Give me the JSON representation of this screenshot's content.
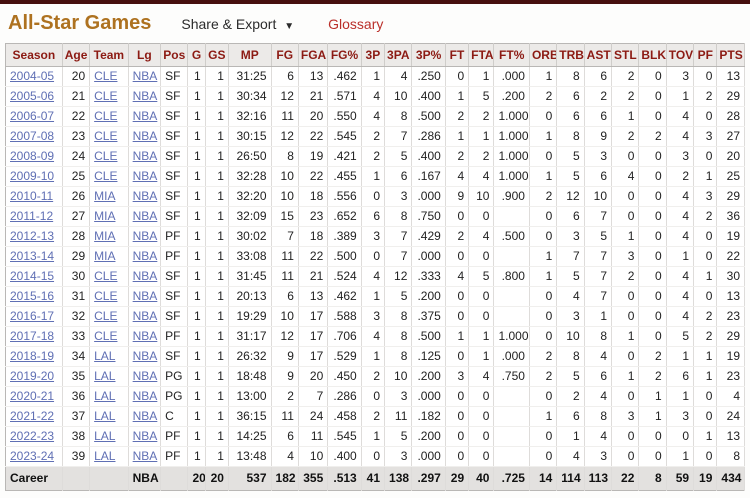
{
  "header": {
    "title": "All-Star Games",
    "share_export_label": "Share & Export",
    "share_export_caret": "▼",
    "glossary_label": "Glossary"
  },
  "colors": {
    "top_bar": "#46100f",
    "title": "#ae7220",
    "header_text": "#8c1a13",
    "glossary_link": "#ba2f2a",
    "cell_link": "#5f6fb4",
    "header_bg": "#eceae8",
    "career_bg": "#e3e1df"
  },
  "table": {
    "columns": [
      "Season",
      "Age",
      "Team",
      "Lg",
      "Pos",
      "G",
      "GS",
      "MP",
      "FG",
      "FGA",
      "FG%",
      "3P",
      "3PA",
      "3P%",
      "FT",
      "FTA",
      "FT%",
      "ORB",
      "TRB",
      "AST",
      "STL",
      "BLK",
      "TOV",
      "PF",
      "PTS"
    ],
    "rows": [
      [
        "2004-05",
        "20",
        "CLE",
        "NBA",
        "SF",
        "1",
        "1",
        "31:25",
        "6",
        "13",
        ".462",
        "1",
        "4",
        ".250",
        "0",
        "1",
        ".000",
        "1",
        "8",
        "6",
        "2",
        "0",
        "3",
        "0",
        "13"
      ],
      [
        "2005-06",
        "21",
        "CLE",
        "NBA",
        "SF",
        "1",
        "1",
        "30:34",
        "12",
        "21",
        ".571",
        "4",
        "10",
        ".400",
        "1",
        "5",
        ".200",
        "2",
        "6",
        "2",
        "2",
        "0",
        "1",
        "2",
        "29"
      ],
      [
        "2006-07",
        "22",
        "CLE",
        "NBA",
        "SF",
        "1",
        "1",
        "32:16",
        "11",
        "20",
        ".550",
        "4",
        "8",
        ".500",
        "2",
        "2",
        "1.000",
        "0",
        "6",
        "6",
        "1",
        "0",
        "4",
        "0",
        "28"
      ],
      [
        "2007-08",
        "23",
        "CLE",
        "NBA",
        "SF",
        "1",
        "1",
        "30:15",
        "12",
        "22",
        ".545",
        "2",
        "7",
        ".286",
        "1",
        "1",
        "1.000",
        "1",
        "8",
        "9",
        "2",
        "2",
        "4",
        "3",
        "27"
      ],
      [
        "2008-09",
        "24",
        "CLE",
        "NBA",
        "SF",
        "1",
        "1",
        "26:50",
        "8",
        "19",
        ".421",
        "2",
        "5",
        ".400",
        "2",
        "2",
        "1.000",
        "0",
        "5",
        "3",
        "0",
        "0",
        "3",
        "0",
        "20"
      ],
      [
        "2009-10",
        "25",
        "CLE",
        "NBA",
        "SF",
        "1",
        "1",
        "32:28",
        "10",
        "22",
        ".455",
        "1",
        "6",
        ".167",
        "4",
        "4",
        "1.000",
        "1",
        "5",
        "6",
        "4",
        "0",
        "2",
        "1",
        "25"
      ],
      [
        "2010-11",
        "26",
        "MIA",
        "NBA",
        "SF",
        "1",
        "1",
        "32:20",
        "10",
        "18",
        ".556",
        "0",
        "3",
        ".000",
        "9",
        "10",
        ".900",
        "2",
        "12",
        "10",
        "0",
        "0",
        "4",
        "3",
        "29"
      ],
      [
        "2011-12",
        "27",
        "MIA",
        "NBA",
        "SF",
        "1",
        "1",
        "32:09",
        "15",
        "23",
        ".652",
        "6",
        "8",
        ".750",
        "0",
        "0",
        "",
        "0",
        "6",
        "7",
        "0",
        "0",
        "4",
        "2",
        "36"
      ],
      [
        "2012-13",
        "28",
        "MIA",
        "NBA",
        "PF",
        "1",
        "1",
        "30:02",
        "7",
        "18",
        ".389",
        "3",
        "7",
        ".429",
        "2",
        "4",
        ".500",
        "0",
        "3",
        "5",
        "1",
        "0",
        "4",
        "0",
        "19"
      ],
      [
        "2013-14",
        "29",
        "MIA",
        "NBA",
        "PF",
        "1",
        "1",
        "33:08",
        "11",
        "22",
        ".500",
        "0",
        "7",
        ".000",
        "0",
        "0",
        "",
        "1",
        "7",
        "7",
        "3",
        "0",
        "1",
        "0",
        "22"
      ],
      [
        "2014-15",
        "30",
        "CLE",
        "NBA",
        "SF",
        "1",
        "1",
        "31:45",
        "11",
        "21",
        ".524",
        "4",
        "12",
        ".333",
        "4",
        "5",
        ".800",
        "1",
        "5",
        "7",
        "2",
        "0",
        "4",
        "1",
        "30"
      ],
      [
        "2015-16",
        "31",
        "CLE",
        "NBA",
        "SF",
        "1",
        "1",
        "20:13",
        "6",
        "13",
        ".462",
        "1",
        "5",
        ".200",
        "0",
        "0",
        "",
        "0",
        "4",
        "7",
        "0",
        "0",
        "4",
        "0",
        "13"
      ],
      [
        "2016-17",
        "32",
        "CLE",
        "NBA",
        "SF",
        "1",
        "1",
        "19:29",
        "10",
        "17",
        ".588",
        "3",
        "8",
        ".375",
        "0",
        "0",
        "",
        "0",
        "3",
        "1",
        "0",
        "0",
        "4",
        "2",
        "23"
      ],
      [
        "2017-18",
        "33",
        "CLE",
        "NBA",
        "PF",
        "1",
        "1",
        "31:17",
        "12",
        "17",
        ".706",
        "4",
        "8",
        ".500",
        "1",
        "1",
        "1.000",
        "0",
        "10",
        "8",
        "1",
        "0",
        "5",
        "2",
        "29"
      ],
      [
        "2018-19",
        "34",
        "LAL",
        "NBA",
        "SF",
        "1",
        "1",
        "26:32",
        "9",
        "17",
        ".529",
        "1",
        "8",
        ".125",
        "0",
        "1",
        ".000",
        "2",
        "8",
        "4",
        "0",
        "2",
        "1",
        "1",
        "19"
      ],
      [
        "2019-20",
        "35",
        "LAL",
        "NBA",
        "PG",
        "1",
        "1",
        "18:48",
        "9",
        "20",
        ".450",
        "2",
        "10",
        ".200",
        "3",
        "4",
        ".750",
        "2",
        "5",
        "6",
        "1",
        "2",
        "6",
        "1",
        "23"
      ],
      [
        "2020-21",
        "36",
        "LAL",
        "NBA",
        "PG",
        "1",
        "1",
        "13:00",
        "2",
        "7",
        ".286",
        "0",
        "3",
        ".000",
        "0",
        "0",
        "",
        "0",
        "2",
        "4",
        "0",
        "1",
        "1",
        "0",
        "4"
      ],
      [
        "2021-22",
        "37",
        "LAL",
        "NBA",
        "C",
        "1",
        "1",
        "36:15",
        "11",
        "24",
        ".458",
        "2",
        "11",
        ".182",
        "0",
        "0",
        "",
        "1",
        "6",
        "8",
        "3",
        "1",
        "3",
        "0",
        "24"
      ],
      [
        "2022-23",
        "38",
        "LAL",
        "NBA",
        "PF",
        "1",
        "1",
        "14:25",
        "6",
        "11",
        ".545",
        "1",
        "5",
        ".200",
        "0",
        "0",
        "",
        "0",
        "1",
        "4",
        "0",
        "0",
        "0",
        "1",
        "13"
      ],
      [
        "2023-24",
        "39",
        "LAL",
        "NBA",
        "PF",
        "1",
        "1",
        "13:48",
        "4",
        "10",
        ".400",
        "0",
        "3",
        ".000",
        "0",
        "0",
        "",
        "0",
        "4",
        "3",
        "0",
        "0",
        "1",
        "0",
        "8"
      ]
    ],
    "career": [
      "Career",
      "",
      "",
      "NBA",
      "",
      "20",
      "20",
      "537",
      "182",
      "355",
      ".513",
      "41",
      "138",
      ".297",
      "29",
      "40",
      ".725",
      "14",
      "114",
      "113",
      "22",
      "8",
      "59",
      "19",
      "434"
    ]
  }
}
